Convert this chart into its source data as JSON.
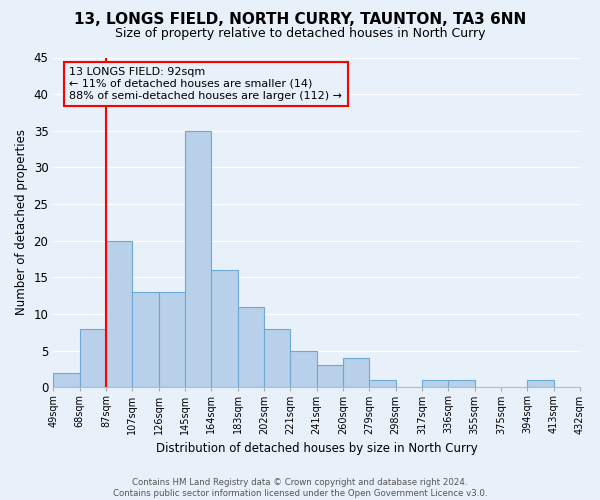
{
  "title": "13, LONGS FIELD, NORTH CURRY, TAUNTON, TA3 6NN",
  "subtitle": "Size of property relative to detached houses in North Curry",
  "xlabel": "Distribution of detached houses by size in North Curry",
  "ylabel": "Number of detached properties",
  "bar_values": [
    2,
    8,
    20,
    13,
    13,
    35,
    16,
    11,
    8,
    5,
    3,
    4,
    1,
    0,
    1,
    1,
    0,
    0,
    1,
    0
  ],
  "categories": [
    "49sqm",
    "68sqm",
    "87sqm",
    "107sqm",
    "126sqm",
    "145sqm",
    "164sqm",
    "183sqm",
    "202sqm",
    "221sqm",
    "241sqm",
    "260sqm",
    "279sqm",
    "298sqm",
    "317sqm",
    "336sqm",
    "355sqm",
    "375sqm",
    "394sqm",
    "413sqm",
    "432sqm"
  ],
  "bar_color": "#b8d0ea",
  "bar_edge_color": "#6aaad4",
  "ylim": [
    0,
    45
  ],
  "yticks": [
    0,
    5,
    10,
    15,
    20,
    25,
    30,
    35,
    40,
    45
  ],
  "annotation_text_line1": "13 LONGS FIELD: 92sqm",
  "annotation_text_line2": "← 11% of detached houses are smaller (14)",
  "annotation_text_line3": "88% of semi-detached houses are larger (112) →",
  "footer_line1": "Contains HM Land Registry data © Crown copyright and database right 2024.",
  "footer_line2": "Contains public sector information licensed under the Open Government Licence v3.0.",
  "background_color": "#e8f0fa",
  "grid_color": "#ffffff",
  "vline_x": 2.0
}
